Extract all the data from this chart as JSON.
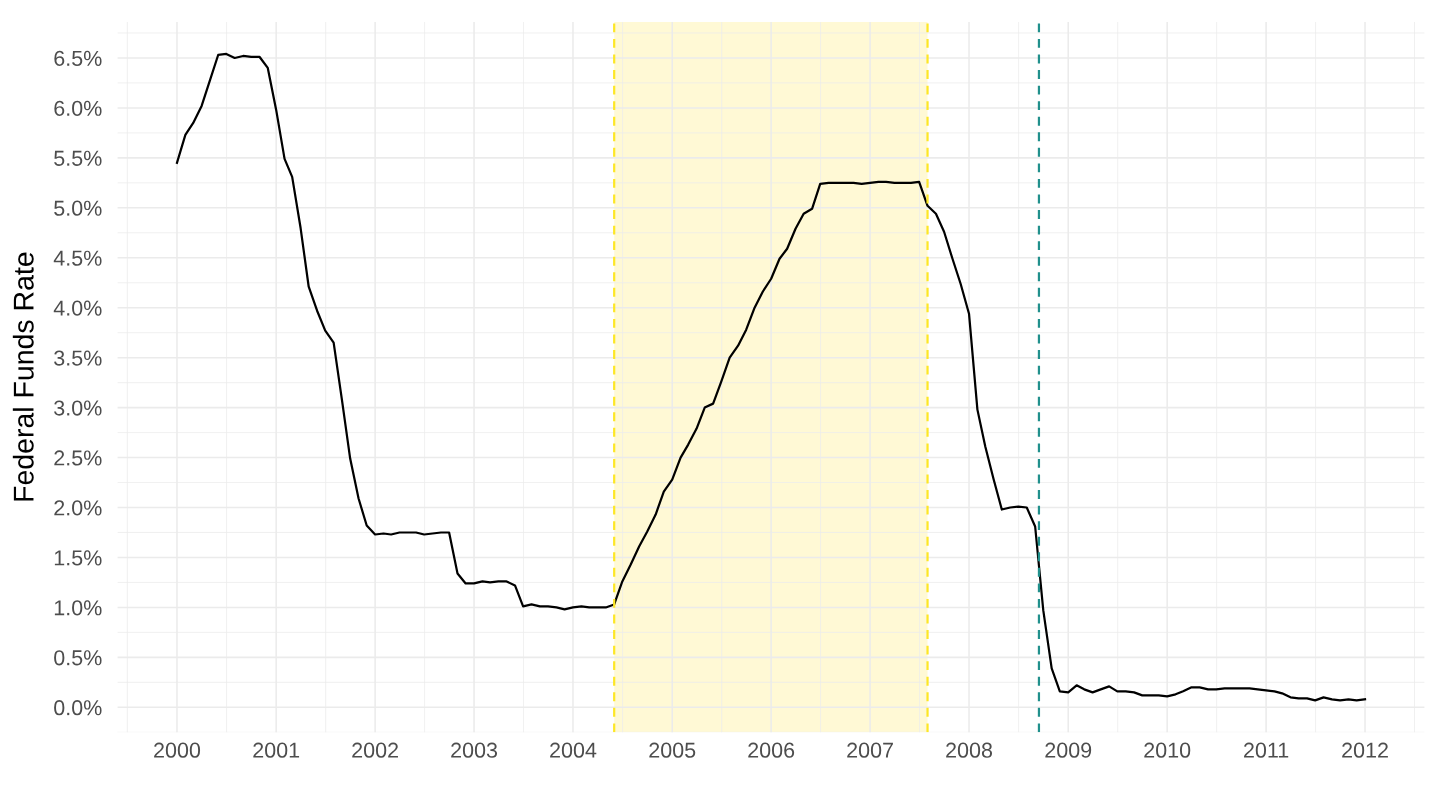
{
  "chart_data": {
    "type": "line",
    "ylabel": "Federal Funds Rate",
    "x": [
      "2000-01",
      "2000-02",
      "2000-03",
      "2000-04",
      "2000-05",
      "2000-06",
      "2000-07",
      "2000-08",
      "2000-09",
      "2000-10",
      "2000-11",
      "2000-12",
      "2001-01",
      "2001-02",
      "2001-03",
      "2001-04",
      "2001-05",
      "2001-06",
      "2001-07",
      "2001-08",
      "2001-09",
      "2001-10",
      "2001-11",
      "2001-12",
      "2002-01",
      "2002-02",
      "2002-03",
      "2002-04",
      "2002-05",
      "2002-06",
      "2002-07",
      "2002-08",
      "2002-09",
      "2002-10",
      "2002-11",
      "2002-12",
      "2003-01",
      "2003-02",
      "2003-03",
      "2003-04",
      "2003-05",
      "2003-06",
      "2003-07",
      "2003-08",
      "2003-09",
      "2003-10",
      "2003-11",
      "2003-12",
      "2004-01",
      "2004-02",
      "2004-03",
      "2004-04",
      "2004-05",
      "2004-06",
      "2004-07",
      "2004-08",
      "2004-09",
      "2004-10",
      "2004-11",
      "2004-12",
      "2005-01",
      "2005-02",
      "2005-03",
      "2005-04",
      "2005-05",
      "2005-06",
      "2005-07",
      "2005-08",
      "2005-09",
      "2005-10",
      "2005-11",
      "2005-12",
      "2006-01",
      "2006-02",
      "2006-03",
      "2006-04",
      "2006-05",
      "2006-06",
      "2006-07",
      "2006-08",
      "2006-09",
      "2006-10",
      "2006-11",
      "2006-12",
      "2007-01",
      "2007-02",
      "2007-03",
      "2007-04",
      "2007-05",
      "2007-06",
      "2007-07",
      "2007-08",
      "2007-09",
      "2007-10",
      "2007-11",
      "2007-12",
      "2008-01",
      "2008-02",
      "2008-03",
      "2008-04",
      "2008-05",
      "2008-06",
      "2008-07",
      "2008-08",
      "2008-09",
      "2008-10",
      "2008-11",
      "2008-12",
      "2009-01",
      "2009-02",
      "2009-03",
      "2009-04",
      "2009-05",
      "2009-06",
      "2009-07",
      "2009-08",
      "2009-09",
      "2009-10",
      "2009-11",
      "2009-12",
      "2010-01",
      "2010-02",
      "2010-03",
      "2010-04",
      "2010-05",
      "2010-06",
      "2010-07",
      "2010-08",
      "2010-09",
      "2010-10",
      "2010-11",
      "2010-12",
      "2011-01",
      "2011-02",
      "2011-03",
      "2011-04",
      "2011-05",
      "2011-06",
      "2011-07",
      "2011-08",
      "2011-09",
      "2011-10",
      "2011-11",
      "2011-12",
      "2012-01"
    ],
    "series": [
      {
        "color": "#000000",
        "values": [
          5.45,
          5.73,
          5.85,
          6.02,
          6.27,
          6.53,
          6.54,
          6.5,
          6.52,
          6.51,
          6.51,
          6.4,
          5.98,
          5.49,
          5.31,
          4.8,
          4.21,
          3.97,
          3.77,
          3.65,
          3.07,
          2.49,
          2.09,
          1.82,
          1.73,
          1.74,
          1.73,
          1.75,
          1.75,
          1.75,
          1.73,
          1.74,
          1.75,
          1.75,
          1.34,
          1.24,
          1.24,
          1.26,
          1.25,
          1.26,
          1.26,
          1.22,
          1.01,
          1.03,
          1.01,
          1.01,
          1.0,
          0.98,
          1.0,
          1.01,
          1.0,
          1.0,
          1.0,
          1.03,
          1.26,
          1.43,
          1.61,
          1.76,
          1.93,
          2.16,
          2.28,
          2.5,
          2.63,
          2.79,
          3.0,
          3.04,
          3.26,
          3.5,
          3.62,
          3.78,
          4.0,
          4.16,
          4.29,
          4.49,
          4.59,
          4.79,
          4.94,
          4.99,
          5.24,
          5.25,
          5.25,
          5.25,
          5.25,
          5.24,
          5.25,
          5.26,
          5.26,
          5.25,
          5.25,
          5.25,
          5.26,
          5.02,
          4.94,
          4.76,
          4.49,
          4.24,
          3.94,
          2.98,
          2.61,
          2.28,
          1.98,
          2.0,
          2.01,
          2.0,
          1.81,
          0.97,
          0.39,
          0.16,
          0.15,
          0.22,
          0.18,
          0.15,
          0.18,
          0.21,
          0.16,
          0.16,
          0.15,
          0.12,
          0.12,
          0.12,
          0.11,
          0.13,
          0.16,
          0.2,
          0.2,
          0.18,
          0.18,
          0.19,
          0.19,
          0.19,
          0.19,
          0.18,
          0.17,
          0.16,
          0.14,
          0.1,
          0.09,
          0.09,
          0.07,
          0.1,
          0.08,
          0.07,
          0.08,
          0.07,
          0.08
        ]
      }
    ],
    "xlim": [
      "1999-05-27",
      "2012-08-07"
    ],
    "xticks": [
      "2000",
      "2001",
      "2002",
      "2003",
      "2004",
      "2005",
      "2006",
      "2007",
      "2008",
      "2009",
      "2010",
      "2011",
      "2012"
    ],
    "ylim": [
      -0.25,
      6.86
    ],
    "yticks": [
      {
        "value": 0,
        "label": "0.0%"
      },
      {
        "value": 0.5,
        "label": "0.5%"
      },
      {
        "value": 1,
        "label": "1.0%"
      },
      {
        "value": 1.5,
        "label": "1.5%"
      },
      {
        "value": 2,
        "label": "2.0%"
      },
      {
        "value": 2.5,
        "label": "2.5%"
      },
      {
        "value": 3,
        "label": "3.0%"
      },
      {
        "value": 3.5,
        "label": "3.5%"
      },
      {
        "value": 4,
        "label": "4.0%"
      },
      {
        "value": 4.5,
        "label": "4.5%"
      },
      {
        "value": 5,
        "label": "5.0%"
      },
      {
        "value": 5.5,
        "label": "5.5%"
      },
      {
        "value": 6,
        "label": "6.0%"
      },
      {
        "value": 6.5,
        "label": "6.5%"
      }
    ],
    "bands": [
      {
        "axis": "x",
        "from": "2004-06",
        "to": "2007-08",
        "color": "#fff9d5"
      }
    ],
    "ref_lines": [
      {
        "axis": "x",
        "value": "2004-06",
        "color": "#fde725",
        "line_style": "dashed"
      },
      {
        "axis": "x",
        "value": "2007-08",
        "color": "#fde725",
        "line_style": "dashed"
      },
      {
        "axis": "x",
        "value": "2008-09-15",
        "color": "#21908c",
        "line_style": "dashed"
      }
    ],
    "grid": true
  }
}
